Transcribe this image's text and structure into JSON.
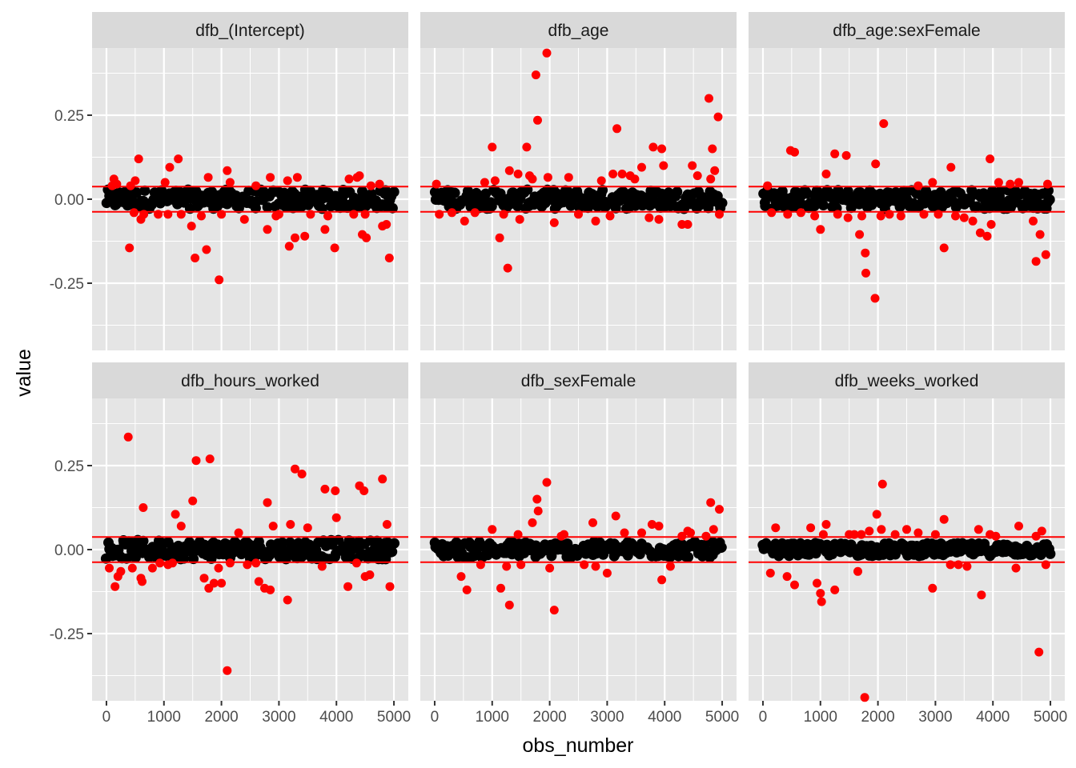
{
  "chart_data": {
    "type": "scatter",
    "layout": "facet-grid-2x3",
    "xlabel": "obs_number",
    "ylabel": "value",
    "xlim": [
      -250,
      5250
    ],
    "ylim": [
      -0.45,
      0.45
    ],
    "x_ticks": [
      0,
      1000,
      2000,
      3000,
      4000,
      5000
    ],
    "x_tick_labels": [
      "0",
      "1000",
      "2000",
      "3000",
      "4000",
      "5000"
    ],
    "y_ticks": [
      -0.25,
      0,
      0.25
    ],
    "y_tick_labels": [
      "-0.25",
      "0.00",
      "0.25"
    ],
    "threshold": 0.0375,
    "grid": true,
    "colors": {
      "panel_bg": "#e5e5e5",
      "strip_bg": "#d9d9d9",
      "grid": "#ffffff",
      "inlier": "#000000",
      "outlier": "#ff0000",
      "threshold_line": "#ff0000"
    },
    "panels": [
      {
        "title": "dfb_(Intercept)",
        "inlier_band": 0.03,
        "outliers": [
          [
            100,
            0.04
          ],
          [
            130,
            0.06
          ],
          [
            180,
            0.045
          ],
          [
            400,
            -0.145
          ],
          [
            420,
            0.04
          ],
          [
            480,
            -0.04
          ],
          [
            500,
            0.055
          ],
          [
            560,
            0.12
          ],
          [
            600,
            -0.06
          ],
          [
            650,
            -0.045
          ],
          [
            900,
            -0.045
          ],
          [
            1020,
            0.05
          ],
          [
            1070,
            -0.045
          ],
          [
            1100,
            0.095
          ],
          [
            1250,
            0.12
          ],
          [
            1300,
            -0.045
          ],
          [
            1480,
            -0.08
          ],
          [
            1540,
            -0.175
          ],
          [
            1650,
            -0.05
          ],
          [
            1740,
            -0.15
          ],
          [
            1770,
            0.065
          ],
          [
            1960,
            -0.24
          ],
          [
            2000,
            -0.045
          ],
          [
            2100,
            0.085
          ],
          [
            2150,
            0.05
          ],
          [
            2400,
            -0.06
          ],
          [
            2600,
            0.04
          ],
          [
            2800,
            -0.09
          ],
          [
            2850,
            0.065
          ],
          [
            2950,
            -0.05
          ],
          [
            3000,
            -0.045
          ],
          [
            3150,
            0.055
          ],
          [
            3180,
            -0.14
          ],
          [
            3280,
            -0.115
          ],
          [
            3320,
            0.065
          ],
          [
            3450,
            -0.11
          ],
          [
            3550,
            -0.045
          ],
          [
            3800,
            -0.09
          ],
          [
            3850,
            -0.05
          ],
          [
            3970,
            -0.145
          ],
          [
            4220,
            0.06
          ],
          [
            4300,
            -0.045
          ],
          [
            4360,
            0.065
          ],
          [
            4400,
            0.07
          ],
          [
            4450,
            -0.105
          ],
          [
            4500,
            -0.045
          ],
          [
            4520,
            -0.115
          ],
          [
            4600,
            0.04
          ],
          [
            4750,
            0.045
          ],
          [
            4800,
            -0.08
          ],
          [
            4870,
            -0.075
          ],
          [
            4920,
            -0.175
          ]
        ]
      },
      {
        "title": "dfb_age",
        "inlier_band": 0.03,
        "outliers": [
          [
            30,
            0.045
          ],
          [
            80,
            -0.045
          ],
          [
            300,
            -0.04
          ],
          [
            520,
            -0.065
          ],
          [
            700,
            -0.04
          ],
          [
            870,
            0.05
          ],
          [
            1000,
            0.155
          ],
          [
            1050,
            0.055
          ],
          [
            1130,
            -0.115
          ],
          [
            1200,
            -0.045
          ],
          [
            1270,
            -0.205
          ],
          [
            1300,
            0.085
          ],
          [
            1450,
            0.075
          ],
          [
            1480,
            -0.06
          ],
          [
            1600,
            0.155
          ],
          [
            1650,
            0.07
          ],
          [
            1700,
            0.06
          ],
          [
            1760,
            0.37
          ],
          [
            1790,
            0.235
          ],
          [
            1950,
            0.435
          ],
          [
            1970,
            0.065
          ],
          [
            2080,
            -0.07
          ],
          [
            2330,
            0.065
          ],
          [
            2500,
            -0.045
          ],
          [
            2800,
            -0.065
          ],
          [
            2900,
            0.055
          ],
          [
            3050,
            -0.05
          ],
          [
            3100,
            0.075
          ],
          [
            3170,
            0.21
          ],
          [
            3260,
            0.075
          ],
          [
            3400,
            0.07
          ],
          [
            3480,
            0.06
          ],
          [
            3600,
            0.095
          ],
          [
            3730,
            -0.055
          ],
          [
            3800,
            0.155
          ],
          [
            3900,
            -0.06
          ],
          [
            3950,
            0.15
          ],
          [
            3980,
            0.1
          ],
          [
            4300,
            -0.075
          ],
          [
            4400,
            -0.075
          ],
          [
            4480,
            0.1
          ],
          [
            4570,
            0.07
          ],
          [
            4770,
            0.3
          ],
          [
            4800,
            0.06
          ],
          [
            4830,
            0.15
          ],
          [
            4870,
            0.085
          ],
          [
            4930,
            0.245
          ],
          [
            4950,
            -0.045
          ]
        ]
      },
      {
        "title": "dfb_age:sexFemale",
        "inlier_band": 0.03,
        "outliers": [
          [
            80,
            0.04
          ],
          [
            150,
            -0.04
          ],
          [
            430,
            -0.045
          ],
          [
            480,
            0.145
          ],
          [
            550,
            0.14
          ],
          [
            660,
            -0.04
          ],
          [
            900,
            -0.05
          ],
          [
            1000,
            -0.09
          ],
          [
            1100,
            0.075
          ],
          [
            1250,
            0.135
          ],
          [
            1300,
            -0.045
          ],
          [
            1450,
            0.13
          ],
          [
            1480,
            -0.055
          ],
          [
            1680,
            -0.105
          ],
          [
            1720,
            -0.05
          ],
          [
            1780,
            -0.16
          ],
          [
            1790,
            -0.22
          ],
          [
            1950,
            -0.295
          ],
          [
            1960,
            0.105
          ],
          [
            2050,
            -0.05
          ],
          [
            2100,
            0.225
          ],
          [
            2200,
            -0.045
          ],
          [
            2400,
            -0.05
          ],
          [
            2700,
            0.04
          ],
          [
            2800,
            -0.045
          ],
          [
            2950,
            0.05
          ],
          [
            3050,
            -0.045
          ],
          [
            3150,
            -0.145
          ],
          [
            3270,
            0.095
          ],
          [
            3350,
            -0.05
          ],
          [
            3500,
            -0.055
          ],
          [
            3650,
            -0.065
          ],
          [
            3780,
            -0.1
          ],
          [
            3900,
            -0.11
          ],
          [
            3950,
            0.12
          ],
          [
            3970,
            -0.075
          ],
          [
            4100,
            0.05
          ],
          [
            4300,
            0.045
          ],
          [
            4450,
            0.05
          ],
          [
            4700,
            -0.065
          ],
          [
            4750,
            -0.185
          ],
          [
            4820,
            -0.105
          ],
          [
            4920,
            -0.165
          ],
          [
            4950,
            0.045
          ]
        ]
      },
      {
        "title": "dfb_hours_worked",
        "inlier_band": 0.03,
        "outliers": [
          [
            50,
            -0.055
          ],
          [
            150,
            -0.11
          ],
          [
            200,
            -0.08
          ],
          [
            250,
            -0.065
          ],
          [
            380,
            0.335
          ],
          [
            450,
            -0.055
          ],
          [
            600,
            -0.085
          ],
          [
            620,
            -0.095
          ],
          [
            640,
            0.125
          ],
          [
            800,
            -0.055
          ],
          [
            930,
            -0.04
          ],
          [
            1070,
            -0.045
          ],
          [
            1150,
            -0.04
          ],
          [
            1200,
            0.105
          ],
          [
            1300,
            0.07
          ],
          [
            1500,
            0.145
          ],
          [
            1560,
            0.265
          ],
          [
            1700,
            -0.085
          ],
          [
            1780,
            -0.115
          ],
          [
            1800,
            0.27
          ],
          [
            1870,
            -0.1
          ],
          [
            1950,
            -0.055
          ],
          [
            2000,
            -0.1
          ],
          [
            2100,
            -0.36
          ],
          [
            2150,
            -0.04
          ],
          [
            2300,
            0.05
          ],
          [
            2450,
            -0.045
          ],
          [
            2600,
            -0.04
          ],
          [
            2650,
            -0.095
          ],
          [
            2750,
            -0.115
          ],
          [
            2800,
            0.14
          ],
          [
            2850,
            -0.12
          ],
          [
            2900,
            0.07
          ],
          [
            3150,
            -0.15
          ],
          [
            3200,
            0.075
          ],
          [
            3280,
            0.24
          ],
          [
            3400,
            0.225
          ],
          [
            3500,
            0.065
          ],
          [
            3750,
            -0.05
          ],
          [
            3800,
            0.18
          ],
          [
            3980,
            0.175
          ],
          [
            4000,
            0.095
          ],
          [
            4200,
            -0.11
          ],
          [
            4350,
            -0.04
          ],
          [
            4400,
            0.19
          ],
          [
            4480,
            0.175
          ],
          [
            4500,
            -0.08
          ],
          [
            4580,
            -0.075
          ],
          [
            4800,
            0.21
          ],
          [
            4880,
            0.075
          ],
          [
            4930,
            -0.11
          ]
        ]
      },
      {
        "title": "dfb_sexFemale",
        "inlier_band": 0.025,
        "outliers": [
          [
            460,
            -0.08
          ],
          [
            560,
            -0.12
          ],
          [
            800,
            -0.045
          ],
          [
            1000,
            0.06
          ],
          [
            1150,
            -0.115
          ],
          [
            1250,
            -0.05
          ],
          [
            1300,
            -0.165
          ],
          [
            1450,
            0.045
          ],
          [
            1500,
            -0.045
          ],
          [
            1700,
            0.08
          ],
          [
            1780,
            0.15
          ],
          [
            1800,
            0.115
          ],
          [
            1950,
            0.2
          ],
          [
            2000,
            -0.055
          ],
          [
            2080,
            -0.18
          ],
          [
            2200,
            0.04
          ],
          [
            2250,
            0.045
          ],
          [
            2600,
            -0.045
          ],
          [
            2750,
            0.08
          ],
          [
            2800,
            -0.05
          ],
          [
            3000,
            -0.07
          ],
          [
            3150,
            0.1
          ],
          [
            3300,
            0.05
          ],
          [
            3600,
            0.05
          ],
          [
            3780,
            0.075
          ],
          [
            3900,
            0.07
          ],
          [
            3950,
            -0.09
          ],
          [
            4100,
            -0.05
          ],
          [
            4300,
            0.04
          ],
          [
            4400,
            0.055
          ],
          [
            4450,
            0.05
          ],
          [
            4720,
            0.04
          ],
          [
            4800,
            0.14
          ],
          [
            4850,
            0.06
          ],
          [
            4950,
            0.12
          ]
        ]
      },
      {
        "title": "dfb_weeks_worked",
        "inlier_band": 0.02,
        "outliers": [
          [
            130,
            -0.07
          ],
          [
            220,
            0.065
          ],
          [
            420,
            -0.08
          ],
          [
            550,
            -0.105
          ],
          [
            830,
            0.065
          ],
          [
            940,
            -0.1
          ],
          [
            1000,
            -0.13
          ],
          [
            1020,
            -0.155
          ],
          [
            1050,
            0.045
          ],
          [
            1100,
            0.075
          ],
          [
            1250,
            -0.12
          ],
          [
            1500,
            0.045
          ],
          [
            1590,
            0.045
          ],
          [
            1650,
            -0.065
          ],
          [
            1710,
            0.045
          ],
          [
            1770,
            -0.44
          ],
          [
            1850,
            0.055
          ],
          [
            1980,
            0.105
          ],
          [
            2060,
            0.06
          ],
          [
            2080,
            0.195
          ],
          [
            2300,
            0.045
          ],
          [
            2500,
            0.06
          ],
          [
            2700,
            0.05
          ],
          [
            2950,
            -0.115
          ],
          [
            3000,
            0.045
          ],
          [
            3150,
            0.09
          ],
          [
            3260,
            -0.045
          ],
          [
            3400,
            -0.045
          ],
          [
            3550,
            -0.05
          ],
          [
            3750,
            0.06
          ],
          [
            3800,
            -0.135
          ],
          [
            3950,
            0.045
          ],
          [
            4050,
            0.04
          ],
          [
            4400,
            -0.055
          ],
          [
            4450,
            0.07
          ],
          [
            4750,
            0.04
          ],
          [
            4800,
            -0.305
          ],
          [
            4850,
            0.055
          ],
          [
            4920,
            -0.045
          ]
        ]
      }
    ]
  }
}
